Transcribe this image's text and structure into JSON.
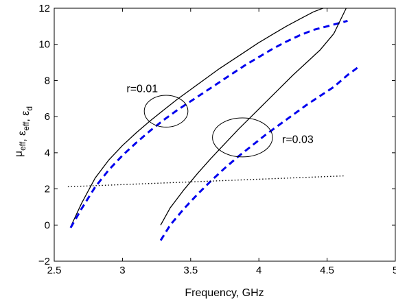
{
  "chart_data": {
    "type": "line",
    "xlabel": "Frequency, GHz",
    "ylabel": {
      "parts": [
        {
          "base": "μ",
          "sub": "eff"
        },
        {
          "base": ", ε",
          "sub": "eff"
        },
        {
          "base": ", ε",
          "sub": "d"
        }
      ]
    },
    "xlim": [
      2.5,
      5
    ],
    "ylim": [
      -2,
      12
    ],
    "x_ticks": [
      2.5,
      3,
      3.5,
      4,
      4.5,
      5
    ],
    "x_tick_labels": [
      "2.5",
      "3",
      "3.5",
      "4",
      "4.5",
      "5"
    ],
    "y_ticks": [
      -2,
      0,
      2,
      4,
      6,
      8,
      10,
      12
    ],
    "y_tick_labels": [
      "−2",
      "0",
      "2",
      "4",
      "6",
      "8",
      "10",
      "12"
    ],
    "grid": false,
    "series": [
      {
        "color": "#000000",
        "style": "solid",
        "x": [
          2.62,
          2.7,
          2.8,
          2.9,
          3.0,
          3.1,
          3.2,
          3.3,
          3.4,
          3.5,
          3.6,
          3.7,
          3.8,
          3.9,
          4.0,
          4.1,
          4.2,
          4.3,
          4.4,
          4.47
        ],
        "y": [
          -0.1,
          1.2,
          2.6,
          3.6,
          4.4,
          5.1,
          5.75,
          6.35,
          6.95,
          7.5,
          8.05,
          8.6,
          9.1,
          9.6,
          10.1,
          10.55,
          11.0,
          11.4,
          11.8,
          12.0
        ]
      },
      {
        "color": "#0000ee",
        "style": "dashed",
        "x": [
          2.62,
          2.7,
          2.8,
          2.9,
          3.0,
          3.1,
          3.2,
          3.3,
          3.4,
          3.5,
          3.6,
          3.7,
          3.8,
          3.9,
          4.0,
          4.1,
          4.2,
          4.3,
          4.4,
          4.5,
          4.6,
          4.65
        ],
        "y": [
          -0.15,
          0.9,
          2.1,
          3.05,
          3.85,
          4.55,
          5.2,
          5.8,
          6.35,
          6.85,
          7.35,
          7.85,
          8.35,
          8.85,
          9.3,
          9.75,
          10.15,
          10.5,
          10.8,
          11.0,
          11.2,
          11.3
        ]
      },
      {
        "color": "#000000",
        "style": "solid",
        "x": [
          3.28,
          3.35,
          3.45,
          3.55,
          3.65,
          3.75,
          3.85,
          3.95,
          4.05,
          4.15,
          4.25,
          4.35,
          4.45,
          4.55,
          4.64
        ],
        "y": [
          0.0,
          0.95,
          1.95,
          2.85,
          3.7,
          4.5,
          5.3,
          6.05,
          6.8,
          7.55,
          8.3,
          9.0,
          9.7,
          10.6,
          12.0
        ]
      },
      {
        "color": "#0000ee",
        "style": "dashed",
        "x": [
          3.28,
          3.35,
          3.45,
          3.55,
          3.65,
          3.75,
          3.85,
          3.95,
          4.05,
          4.15,
          4.25,
          4.35,
          4.45,
          4.55,
          4.65,
          4.73
        ],
        "y": [
          -0.85,
          0.0,
          0.9,
          1.7,
          2.45,
          3.15,
          3.8,
          4.4,
          5.0,
          5.55,
          6.1,
          6.65,
          7.15,
          7.65,
          8.3,
          8.75
        ]
      },
      {
        "color": "#000000",
        "style": "dotted",
        "x": [
          2.6,
          4.62
        ],
        "y": [
          2.12,
          2.72
        ]
      }
    ],
    "annotations": [
      {
        "text": "r=0.01",
        "x": 3.03,
        "y": 7.35
      },
      {
        "text": "r=0.03",
        "x": 4.17,
        "y": 4.55
      }
    ],
    "ellipses": [
      {
        "cx": 3.32,
        "cy": 6.3,
        "rx": 0.16,
        "ry": 0.88
      },
      {
        "cx": 3.88,
        "cy": 4.85,
        "rx": 0.22,
        "ry": 1.08
      }
    ]
  }
}
